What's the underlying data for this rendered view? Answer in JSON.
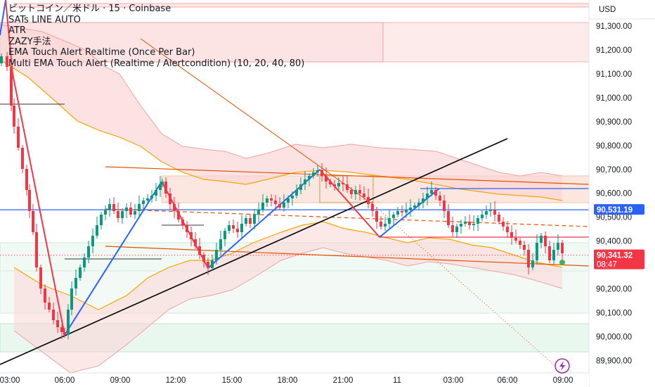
{
  "legend": {
    "title": "ビットコイン／米ドル · 15 · Coinbase",
    "indicators": [
      "SATs LINE AUTO",
      "ATR",
      "ZAZY手法",
      "EMA Touch Alert Realtime (Once Per Bar)",
      "Multi EMA Touch Alert (Realtime / Alertcondition) (10, 20, 40, 80)"
    ]
  },
  "price_axis": {
    "currency": "USD",
    "ticks": [
      "91,300.00",
      "91,200.00",
      "91,100.00",
      "91,000.00",
      "90,900.00",
      "90,800.00",
      "90,700.00",
      "90,600.00",
      "90,500.00",
      "90,400.00",
      "90,300.00",
      "90,200.00",
      "90,100.00",
      "90,000.00",
      "89,900.00"
    ],
    "tick_values": [
      91300,
      91200,
      91100,
      91000,
      90900,
      90800,
      90700,
      90600,
      90500,
      90400,
      90300,
      90200,
      90100,
      90000,
      89900
    ]
  },
  "time_axis": {
    "ticks": [
      "03:00",
      "06:00",
      "09:00",
      "12:00",
      "15:00",
      "18:00",
      "21:00",
      "11",
      "03:00",
      "06:00",
      "09:00"
    ]
  },
  "badges": {
    "line_price": "90,531.19",
    "last_price": "90,341.32",
    "countdown": "08:47",
    "line_color": "#2962ff",
    "last_color": "#f23645"
  },
  "colors": {
    "up": "#089981",
    "down": "#f23645",
    "zigzag_up": "#2962ff",
    "zigzag_down": "#f23645",
    "trend": "#000000",
    "channel": "#e65100",
    "band": "#f7a600",
    "band_fill": "#fbd5d5"
  },
  "chart_data": {
    "type": "candlestick",
    "title": "ビットコイン／米ドル · 15 · Coinbase",
    "unit": "USD",
    "ylim": [
      89860,
      91380
    ],
    "grid": false,
    "x_axis_labels": [
      "03:00",
      "06:00",
      "09:00",
      "12:00",
      "15:00",
      "18:00",
      "21:00",
      "11",
      "03:00",
      "06:00",
      "09:00"
    ],
    "reference_lines": {
      "horizontal_blue": 90531.19,
      "last_price": 90341.32
    },
    "ohlc_sample": [
      {
        "t": "06:00",
        "close": 90000
      },
      {
        "t": "11:15",
        "close": 90640
      },
      {
        "t": "14:30",
        "close": 90290
      },
      {
        "t": "19:45",
        "close": 90700
      },
      {
        "t": "23:00",
        "close": 90410
      },
      {
        "t": "02:15",
        "close": 90620
      },
      {
        "t": "08:45",
        "close": 90341.32
      }
    ]
  }
}
